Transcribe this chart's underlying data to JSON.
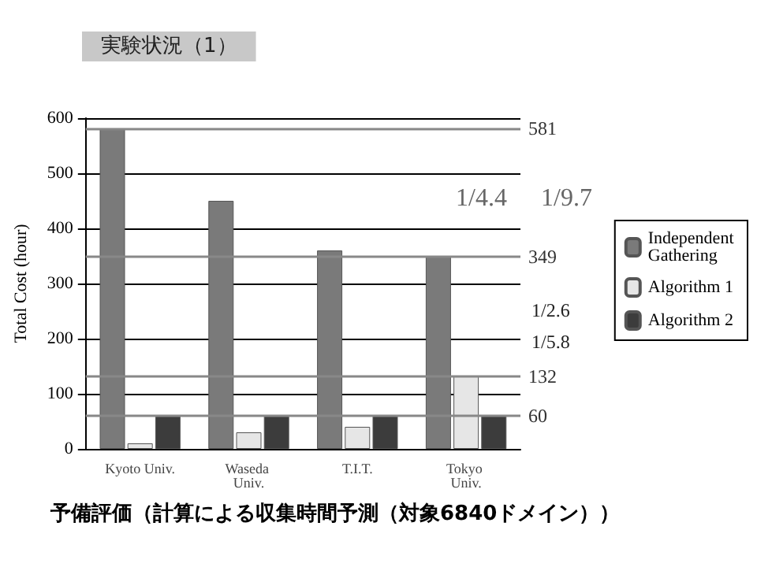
{
  "chart_data": {
    "type": "bar",
    "title": "実験状況（1）",
    "categories": [
      "Kyoto Univ.",
      "Waseda Univ.",
      "T.I.T.",
      "Tokyo Univ."
    ],
    "ylabel": "Total Cost (hour)",
    "ylim": [
      0,
      600
    ],
    "yticks": [
      0,
      100,
      200,
      300,
      400,
      500,
      600
    ],
    "series": [
      {
        "name": "Independent Gathering",
        "color": "#7a7a7a",
        "values": [
          581,
          450,
          360,
          349
        ]
      },
      {
        "name": "Algorithm 1",
        "color": "#e6e6e6",
        "values": [
          10,
          30,
          40,
          132
        ]
      },
      {
        "name": "Algorithm 2",
        "color": "#3c3c3c",
        "values": [
          60,
          60,
          60,
          60
        ]
      }
    ],
    "ref_lines": [
      {
        "axis": "y",
        "value": 581,
        "label": "581",
        "color": "#888888"
      },
      {
        "axis": "y",
        "value": 349,
        "label": "349",
        "color": "#888888"
      },
      {
        "axis": "y",
        "value": 132,
        "label": "132",
        "color": "#888888"
      },
      {
        "axis": "y",
        "value": 60,
        "label": "60",
        "color": "#888888"
      }
    ],
    "annotations": [
      "1/4.4",
      "1/9.7",
      "1/2.6",
      "1/5.8",
      "予備評価（計算による収集時間予測（対象6840ドメイン））"
    ],
    "grid": "y",
    "legend": "right"
  }
}
